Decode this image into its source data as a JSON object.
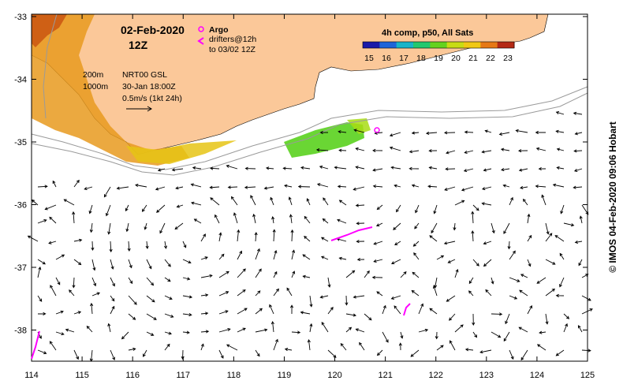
{
  "map": {
    "date": "02-Feb-2020",
    "time": "12Z",
    "legend_argo": "Argo",
    "legend_drifters": "drifters@12h",
    "legend_drifters_sub": "to 03/02 12Z",
    "contour_200": "200m",
    "contour_1000": "1000m",
    "source": "NRT00 GSL",
    "source_date": "30-Jan 18:00Z",
    "scale_label": "0.5m/s (1kt 24h)",
    "colorbar_title": "4h comp, p50, All Sats",
    "colorbar_ticks": [
      "15",
      "16",
      "17",
      "18",
      "19",
      "20",
      "21",
      "22",
      "23"
    ],
    "colors": [
      "#1a1aa8",
      "#1f64d8",
      "#18b4c8",
      "#23c86e",
      "#64d21e",
      "#c8dc14",
      "#f0c814",
      "#e67814",
      "#b42814"
    ],
    "lon_labels": [
      "114",
      "115",
      "116",
      "117",
      "118",
      "119",
      "120",
      "121",
      "122",
      "123",
      "124",
      "125"
    ],
    "lat_labels": [
      "-33",
      "-34",
      "-35",
      "-36",
      "-37",
      "-38"
    ],
    "copyright": "© IMOS 04-Feb-2020 09:06 Hobart",
    "land_color": "#fbc899",
    "argo_color": "#ff00ff"
  }
}
